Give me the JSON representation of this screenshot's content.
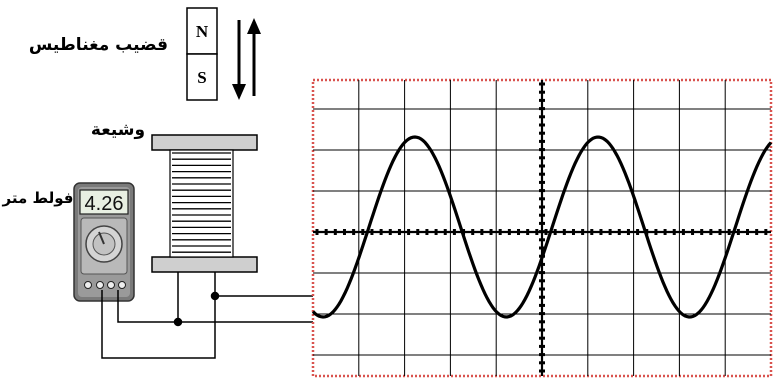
{
  "labels": {
    "magnet": "قضيب مغناطيس",
    "coil": "وشيعة",
    "voltmeter": "فولط متر"
  },
  "magnet": {
    "north": "N",
    "south": "S"
  },
  "voltmeter": {
    "reading": "4.26"
  },
  "oscilloscope": {
    "waveform": "sine",
    "cycles_shown": 2.5,
    "start_phase": "minimum-rising",
    "grid_columns": 10,
    "grid_rows": 8
  },
  "colors": {
    "screen_border": "#d9534f",
    "trace": "#000000",
    "grid": "#000000",
    "meter_body": "#7a7a7a",
    "coil_plate": "#cfcfcf"
  }
}
